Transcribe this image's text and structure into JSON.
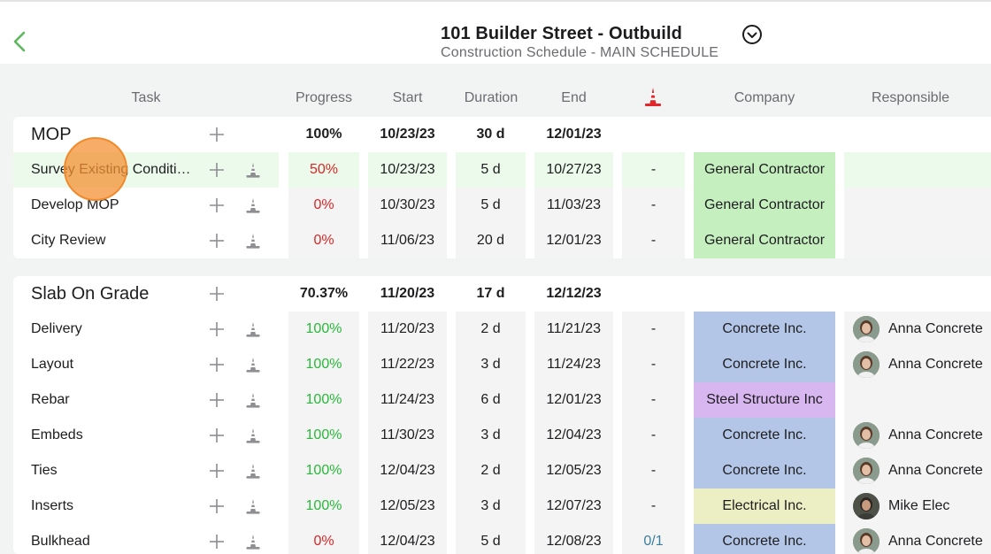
{
  "header": {
    "title": "101 Builder Street - Outbuild",
    "subtitle": "Construction Schedule - MAIN SCHEDULE",
    "back_icon": "chevron-left-icon",
    "dropdown_icon": "chevron-down-circle-icon"
  },
  "columns": {
    "task": "Task",
    "progress": "Progress",
    "start": "Start",
    "duration": "Duration",
    "end": "End",
    "constraints_icon": "traffic-cone-icon",
    "company": "Company",
    "responsible": "Responsible"
  },
  "colors": {
    "accent_green": "#5cb85c",
    "progress_red": "#d62828",
    "progress_green": "#28b83a",
    "general_contractor": "#c6efc0",
    "concrete_inc": "#b3c6e8",
    "steel_structure": "#d8b6f0",
    "electrical_inc": "#ecefc4",
    "cone_red": "#e3262a"
  },
  "groups": [
    {
      "name": "MOP",
      "progress": "100%",
      "start": "10/23/23",
      "duration": "30 d",
      "end": "12/01/23",
      "tasks": [
        {
          "name": "Survey Existing Conditions",
          "progress": "50%",
          "start": "10/23/23",
          "duration": "5 d",
          "end": "10/27/23",
          "constraints": "-",
          "company": "General Contractor",
          "responsible": ""
        },
        {
          "name": "Develop MOP",
          "progress": "0%",
          "start": "10/30/23",
          "duration": "5 d",
          "end": "11/03/23",
          "constraints": "-",
          "company": "General Contractor",
          "responsible": ""
        },
        {
          "name": "City Review",
          "progress": "0%",
          "start": "11/06/23",
          "duration": "20 d",
          "end": "12/01/23",
          "constraints": "-",
          "company": "General Contractor",
          "responsible": ""
        }
      ]
    },
    {
      "name": "Slab On Grade",
      "progress": "70.37%",
      "start": "11/20/23",
      "duration": "17 d",
      "end": "12/12/23",
      "tasks": [
        {
          "name": "Delivery",
          "progress": "100%",
          "start": "11/20/23",
          "duration": "2 d",
          "end": "11/21/23",
          "constraints": "-",
          "company": "Concrete Inc.",
          "responsible": "Anna Concrete"
        },
        {
          "name": "Layout",
          "progress": "100%",
          "start": "11/22/23",
          "duration": "3 d",
          "end": "11/24/23",
          "constraints": "-",
          "company": "Concrete Inc.",
          "responsible": "Anna Concrete"
        },
        {
          "name": "Rebar",
          "progress": "100%",
          "start": "11/24/23",
          "duration": "6 d",
          "end": "12/01/23",
          "constraints": "-",
          "company": "Steel Structure Inc",
          "responsible": ""
        },
        {
          "name": "Embeds",
          "progress": "100%",
          "start": "11/30/23",
          "duration": "3 d",
          "end": "12/04/23",
          "constraints": "-",
          "company": "Concrete Inc.",
          "responsible": "Anna Concrete"
        },
        {
          "name": "Ties",
          "progress": "100%",
          "start": "12/04/23",
          "duration": "2 d",
          "end": "12/05/23",
          "constraints": "-",
          "company": "Concrete Inc.",
          "responsible": "Anna Concrete"
        },
        {
          "name": "Inserts",
          "progress": "100%",
          "start": "12/05/23",
          "duration": "3 d",
          "end": "12/07/23",
          "constraints": "-",
          "company": "Electrical Inc.",
          "responsible": "Mike Elec"
        },
        {
          "name": "Bulkhead",
          "progress": "0%",
          "start": "12/04/23",
          "duration": "5 d",
          "end": "12/08/23",
          "constraints": "0/1",
          "company": "Concrete Inc.",
          "responsible": "Anna Concrete"
        }
      ]
    }
  ]
}
